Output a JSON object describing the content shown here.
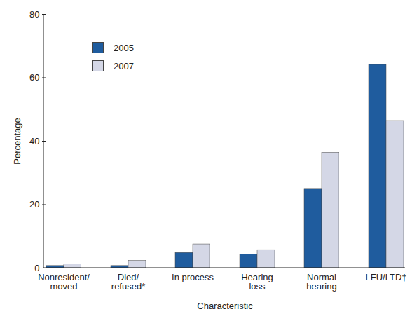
{
  "chart_data": {
    "type": "bar",
    "categories": [
      "Nonresident/\nmoved",
      "Died/\nrefused*",
      "In process",
      "Hearing\nloss",
      "Normal\nhearing",
      "LFU/LTD†"
    ],
    "series": [
      {
        "name": "2005",
        "color": "#1f5c9e",
        "values": [
          0.7,
          0.7,
          4.8,
          4.3,
          25.0,
          64.1
        ]
      },
      {
        "name": "2007",
        "color": "#d4d7e6",
        "values": [
          1.2,
          2.3,
          7.5,
          5.7,
          36.4,
          46.4
        ]
      }
    ],
    "x_label": "Characteristic",
    "y_label": "Percentage",
    "ylim": [
      0,
      80
    ],
    "yticks": [
      0,
      20,
      40,
      60,
      80
    ],
    "legend": "upper left",
    "grid": false
  }
}
